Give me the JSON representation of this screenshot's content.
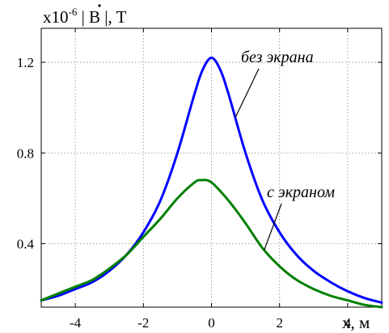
{
  "chart_data": {
    "type": "line",
    "ylabel": {
      "prefix": "x10",
      "exponent": "-6",
      "quantity": " | B |, T"
    },
    "xlabel": "x, м",
    "xlim": [
      -5,
      5
    ],
    "ylim": [
      0.12,
      1.35
    ],
    "xticks": [
      -4,
      -2,
      0,
      2,
      4
    ],
    "xtick_labels": [
      "-4",
      "-2",
      "0",
      "2",
      "4"
    ],
    "yticks": [
      0.4,
      0.8,
      1.2
    ],
    "ytick_labels": [
      "0.4",
      "0.8",
      "1.2"
    ],
    "grid": true,
    "series": [
      {
        "label": "без экрана",
        "color": "#0000ff",
        "x": [
          -5,
          -4.5,
          -4,
          -3.5,
          -3,
          -2.5,
          -2,
          -1.5,
          -1,
          -0.5,
          -0.25,
          0,
          0.25,
          0.5,
          1,
          1.5,
          2,
          2.5,
          3,
          3.5,
          4,
          4.5,
          5
        ],
        "y": [
          0.15,
          0.17,
          0.2,
          0.23,
          0.28,
          0.35,
          0.45,
          0.59,
          0.8,
          1.06,
          1.17,
          1.22,
          1.17,
          1.06,
          0.8,
          0.59,
          0.45,
          0.35,
          0.28,
          0.23,
          0.19,
          0.16,
          0.14
        ]
      },
      {
        "label": "с экраном",
        "color": "#008000",
        "x": [
          -5,
          -4.5,
          -4,
          -3.5,
          -3,
          -2.5,
          -2,
          -1.5,
          -1,
          -0.5,
          -0.3,
          0,
          0.5,
          1,
          1.5,
          2,
          2.5,
          3,
          3.5,
          4,
          4.5,
          5
        ],
        "y": [
          0.15,
          0.18,
          0.21,
          0.24,
          0.29,
          0.35,
          0.43,
          0.51,
          0.6,
          0.67,
          0.68,
          0.67,
          0.59,
          0.49,
          0.38,
          0.3,
          0.24,
          0.2,
          0.17,
          0.15,
          0.13,
          0.12
        ]
      }
    ],
    "annotations": [
      {
        "text": "без экрана",
        "series": 0
      },
      {
        "text": "с экраном",
        "series": 1
      }
    ]
  }
}
